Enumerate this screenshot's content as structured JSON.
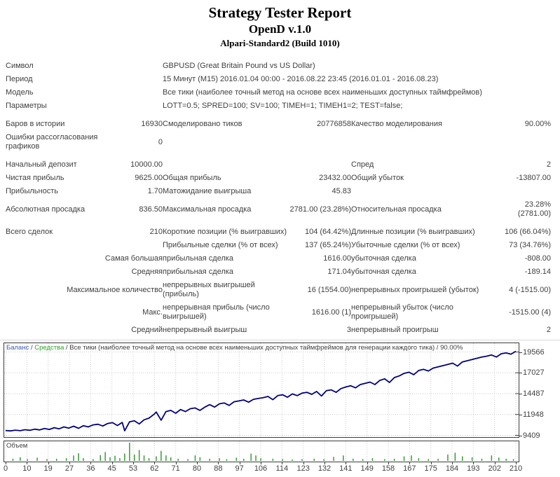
{
  "header": {
    "title": "Strategy Tester Report",
    "expert": "OpenD v.1.0",
    "server": "Alpari-Standard2 (Build 1010)"
  },
  "report": {
    "rows": [
      {
        "c": [
          {
            "t": "Символ",
            "k": "label"
          },
          {
            "t": "",
            "k": "value"
          },
          {
            "t": "GBPUSD (Great Britain Pound vs US Dollar)",
            "s": 4,
            "k": "sublabel"
          }
        ]
      },
      {
        "c": [
          {
            "t": "Период",
            "k": "label"
          },
          {
            "t": "",
            "k": "value"
          },
          {
            "t": "15 Минут (M15) 2016.01.04 00:00 - 2016.08.22 23:45 (2016.01.01 - 2016.08.23)",
            "s": 4,
            "k": "sublabel"
          }
        ]
      },
      {
        "c": [
          {
            "t": "Модель",
            "k": "label"
          },
          {
            "t": "",
            "k": "value"
          },
          {
            "t": "Все тики (наиболее точный метод на основе всех наименьших доступных таймфреймов)",
            "s": 4,
            "k": "sublabel"
          }
        ]
      },
      {
        "c": [
          {
            "t": "Параметры",
            "k": "label"
          },
          {
            "t": "",
            "k": "value"
          },
          {
            "t": "LOTT=0.5; SPRED=100; SV=100; TIMEH=1; TIMEH1=2; TEST=false;",
            "s": 4,
            "k": "sublabel"
          }
        ]
      },
      {
        "gap": true
      },
      {
        "c": [
          {
            "t": "Баров в истории",
            "k": "label"
          },
          {
            "t": "16930",
            "k": "value"
          },
          {
            "t": "Смоделировано тиков",
            "k": "sublabel"
          },
          {
            "t": "20776858",
            "k": "value"
          },
          {
            "t": "Качество моделирования",
            "k": "sublabel"
          },
          {
            "t": "90.00%",
            "k": "value"
          }
        ]
      },
      {
        "c": [
          {
            "t": "Ошибки рассогласования графиков",
            "k": "label"
          },
          {
            "t": "0",
            "k": "value"
          },
          {
            "t": "",
            "s": 4,
            "k": "sublabel"
          }
        ]
      },
      {
        "gap": true
      },
      {
        "c": [
          {
            "t": "Начальный депозит",
            "k": "label"
          },
          {
            "t": "10000.00",
            "k": "value"
          },
          {
            "t": "",
            "k": "sublabel"
          },
          {
            "t": "",
            "k": "value"
          },
          {
            "t": "Спред",
            "k": "sublabel"
          },
          {
            "t": "2",
            "k": "value"
          }
        ]
      },
      {
        "c": [
          {
            "t": "Чистая прибыль",
            "k": "label"
          },
          {
            "t": "9625.00",
            "k": "value"
          },
          {
            "t": "Общая прибыль",
            "k": "sublabel"
          },
          {
            "t": "23432.00",
            "k": "value"
          },
          {
            "t": "Общий убыток",
            "k": "sublabel"
          },
          {
            "t": "-13807.00",
            "k": "value"
          }
        ]
      },
      {
        "c": [
          {
            "t": "Прибыльность",
            "k": "label"
          },
          {
            "t": "1.70",
            "k": "value"
          },
          {
            "t": "Матожидание выигрыша",
            "k": "sublabel"
          },
          {
            "t": "45.83",
            "k": "value"
          },
          {
            "t": "",
            "k": "sublabel"
          },
          {
            "t": "",
            "k": "value"
          }
        ]
      },
      {
        "c": [
          {
            "t": "Абсолютная просадка",
            "k": "label"
          },
          {
            "t": "836.50",
            "k": "value"
          },
          {
            "t": "Максимальная просадка",
            "k": "sublabel"
          },
          {
            "t": "2781.00 (23.28%)",
            "k": "value"
          },
          {
            "t": "Относительная просадка",
            "k": "sublabel"
          },
          {
            "t": "23.28% (2781.00)",
            "k": "value"
          }
        ]
      },
      {
        "gap": true
      },
      {
        "c": [
          {
            "t": "Всего сделок",
            "k": "label"
          },
          {
            "t": "210",
            "k": "value"
          },
          {
            "t": "Короткие позиции (% выигравших)",
            "k": "sublabel"
          },
          {
            "t": "104 (64.42%)",
            "k": "value"
          },
          {
            "t": "Длинные позиции (% выигравших)",
            "k": "sublabel"
          },
          {
            "t": "106 (66.04%)",
            "k": "value"
          }
        ]
      },
      {
        "c": [
          {
            "t": "",
            "s": 2,
            "k": "prefix"
          },
          {
            "t": "Прибыльные сделки (% от всех)",
            "k": "sublabel"
          },
          {
            "t": "137 (65.24%)",
            "k": "value"
          },
          {
            "t": "Убыточные сделки (% от всех)",
            "k": "sublabel"
          },
          {
            "t": "73 (34.76%)",
            "k": "value"
          }
        ]
      },
      {
        "c": [
          {
            "t": "Самая большая",
            "s": 2,
            "k": "prefix"
          },
          {
            "t": "прибыльная сделка",
            "k": "sublabel"
          },
          {
            "t": "1616.00",
            "k": "value"
          },
          {
            "t": "убыточная сделка",
            "k": "sublabel"
          },
          {
            "t": "-808.00",
            "k": "value"
          }
        ]
      },
      {
        "c": [
          {
            "t": "Средняя",
            "s": 2,
            "k": "prefix"
          },
          {
            "t": "прибыльная сделка",
            "k": "sublabel"
          },
          {
            "t": "171.04",
            "k": "value"
          },
          {
            "t": "убыточная сделка",
            "k": "sublabel"
          },
          {
            "t": "-189.14",
            "k": "value"
          }
        ]
      },
      {
        "c": [
          {
            "t": "Максимальное количество",
            "s": 2,
            "k": "prefix"
          },
          {
            "t": "непрерывных выигрышей (прибыль)",
            "k": "sublabel"
          },
          {
            "t": "16 (1554.00)",
            "k": "value"
          },
          {
            "t": "непрерывных проигрышей (убыток)",
            "k": "sublabel"
          },
          {
            "t": "4 (-1515.00)",
            "k": "value"
          }
        ]
      },
      {
        "c": [
          {
            "t": "Макс.",
            "s": 2,
            "k": "prefix"
          },
          {
            "t": "непрерывная прибыль (число выигрышей)",
            "k": "sublabel"
          },
          {
            "t": "1616.00 (1)",
            "k": "value"
          },
          {
            "t": "непрерывный убыток (число проигрышей)",
            "k": "sublabel"
          },
          {
            "t": "-1515.00 (4)",
            "k": "value"
          }
        ]
      },
      {
        "c": [
          {
            "t": "Средний",
            "s": 2,
            "k": "prefix"
          },
          {
            "t": "непрерывный выигрыш",
            "k": "sublabel"
          },
          {
            "t": "3",
            "k": "value"
          },
          {
            "t": "непрерывный проигрыш",
            "k": "sublabel"
          },
          {
            "t": "2",
            "k": "value"
          }
        ]
      }
    ]
  },
  "chart": {
    "legend": {
      "balance": "Баланс",
      "equity": "Средства",
      "model": "Все тики (наиболее точный метод на основе всех наименьших доступных таймфреймов для генерации каждого тика)",
      "quality": "90.00%",
      "separator": " / "
    },
    "volume_label": "Объем",
    "colors": {
      "balance_line": "#000080",
      "balance_legend": "#3b5bb5",
      "equity_legend": "#2e9e2e",
      "volume_bar": "#3a9a3a",
      "grid": "#c9c9c9",
      "axis_text": "#3f3f3f",
      "border": "#3c3c3c"
    }
  },
  "chart_data": {
    "type": "line",
    "series": [
      {
        "name": "Баланс",
        "points": [
          [
            0,
            10000
          ],
          [
            2,
            9950
          ],
          [
            4,
            10040
          ],
          [
            6,
            9970
          ],
          [
            8,
            10090
          ],
          [
            10,
            10020
          ],
          [
            12,
            10160
          ],
          [
            14,
            10070
          ],
          [
            16,
            10240
          ],
          [
            18,
            10130
          ],
          [
            20,
            10340
          ],
          [
            22,
            10200
          ],
          [
            24,
            10430
          ],
          [
            26,
            10290
          ],
          [
            28,
            10520
          ],
          [
            30,
            10260
          ],
          [
            32,
            10580
          ],
          [
            34,
            10430
          ],
          [
            36,
            10680
          ],
          [
            38,
            10760
          ],
          [
            40,
            10540
          ],
          [
            42,
            10850
          ],
          [
            44,
            10950
          ],
          [
            46,
            10600
          ],
          [
            48,
            10980
          ],
          [
            49,
            9960
          ],
          [
            51,
            11050
          ],
          [
            53,
            11180
          ],
          [
            55,
            10800
          ],
          [
            57,
            11300
          ],
          [
            59,
            11500
          ],
          [
            61,
            11950
          ],
          [
            62,
            12250
          ],
          [
            64,
            11250
          ],
          [
            66,
            12300
          ],
          [
            68,
            12450
          ],
          [
            70,
            12100
          ],
          [
            72,
            12550
          ],
          [
            74,
            12300
          ],
          [
            76,
            12650
          ],
          [
            78,
            12750
          ],
          [
            80,
            12450
          ],
          [
            82,
            12850
          ],
          [
            84,
            13150
          ],
          [
            86,
            12850
          ],
          [
            88,
            13250
          ],
          [
            90,
            13350
          ],
          [
            92,
            13050
          ],
          [
            94,
            13500
          ],
          [
            96,
            13600
          ],
          [
            98,
            13720
          ],
          [
            100,
            13450
          ],
          [
            102,
            13800
          ],
          [
            104,
            13900
          ],
          [
            106,
            14000
          ],
          [
            108,
            14150
          ],
          [
            110,
            13750
          ],
          [
            112,
            14250
          ],
          [
            114,
            14350
          ],
          [
            116,
            14050
          ],
          [
            118,
            14450
          ],
          [
            120,
            14250
          ],
          [
            122,
            14550
          ],
          [
            124,
            14650
          ],
          [
            126,
            14400
          ],
          [
            128,
            14750
          ],
          [
            130,
            14200
          ],
          [
            132,
            14850
          ],
          [
            134,
            14950
          ],
          [
            136,
            14650
          ],
          [
            138,
            15100
          ],
          [
            140,
            15300
          ],
          [
            142,
            15450
          ],
          [
            144,
            15200
          ],
          [
            146,
            15600
          ],
          [
            148,
            15750
          ],
          [
            150,
            15900
          ],
          [
            152,
            15600
          ],
          [
            154,
            16100
          ],
          [
            156,
            16300
          ],
          [
            158,
            15850
          ],
          [
            160,
            16450
          ],
          [
            162,
            16650
          ],
          [
            164,
            16950
          ],
          [
            166,
            17100
          ],
          [
            168,
            16800
          ],
          [
            170,
            17300
          ],
          [
            172,
            17450
          ],
          [
            174,
            17250
          ],
          [
            176,
            17600
          ],
          [
            178,
            17750
          ],
          [
            180,
            17900
          ],
          [
            182,
            18050
          ],
          [
            184,
            18200
          ],
          [
            186,
            17850
          ],
          [
            188,
            18350
          ],
          [
            190,
            18500
          ],
          [
            192,
            18650
          ],
          [
            194,
            18800
          ],
          [
            196,
            18950
          ],
          [
            198,
            19050
          ],
          [
            200,
            19200
          ],
          [
            202,
            18950
          ],
          [
            204,
            19350
          ],
          [
            206,
            19450
          ],
          [
            208,
            19300
          ],
          [
            210,
            19650
          ]
        ]
      }
    ],
    "volume_bars": [
      [
        3,
        0.12
      ],
      [
        6,
        0.2
      ],
      [
        9,
        0.1
      ],
      [
        13,
        0.18
      ],
      [
        17,
        0.1
      ],
      [
        21,
        0.12
      ],
      [
        25,
        0.15
      ],
      [
        28,
        0.3
      ],
      [
        30,
        0.42
      ],
      [
        32,
        0.15
      ],
      [
        36,
        0.1
      ],
      [
        39,
        0.32
      ],
      [
        41,
        0.48
      ],
      [
        43,
        0.2
      ],
      [
        45,
        0.28
      ],
      [
        47,
        0.15
      ],
      [
        49,
        0.4
      ],
      [
        51,
        1.0
      ],
      [
        53,
        0.35
      ],
      [
        55,
        0.6
      ],
      [
        57,
        0.3
      ],
      [
        59,
        0.15
      ],
      [
        62,
        0.25
      ],
      [
        64,
        0.55
      ],
      [
        66,
        0.3
      ],
      [
        68,
        0.2
      ],
      [
        71,
        0.12
      ],
      [
        75,
        0.1
      ],
      [
        78,
        0.3
      ],
      [
        80,
        0.2
      ],
      [
        84,
        0.12
      ],
      [
        88,
        0.15
      ],
      [
        91,
        0.1
      ],
      [
        95,
        0.18
      ],
      [
        98,
        0.12
      ],
      [
        101,
        0.4
      ],
      [
        103,
        0.3
      ],
      [
        105,
        0.15
      ],
      [
        110,
        0.12
      ],
      [
        114,
        0.1
      ],
      [
        118,
        0.08
      ],
      [
        122,
        0.1
      ],
      [
        127,
        0.12
      ],
      [
        131,
        0.1
      ],
      [
        135,
        0.22
      ],
      [
        139,
        0.3
      ],
      [
        143,
        0.12
      ],
      [
        147,
        0.1
      ],
      [
        151,
        0.15
      ],
      [
        156,
        0.1
      ],
      [
        160,
        0.12
      ],
      [
        164,
        0.25
      ],
      [
        167,
        0.3
      ],
      [
        170,
        0.15
      ],
      [
        174,
        0.1
      ],
      [
        178,
        0.12
      ],
      [
        182,
        0.35
      ],
      [
        185,
        0.45
      ],
      [
        188,
        0.25
      ],
      [
        192,
        0.2
      ],
      [
        196,
        0.12
      ],
      [
        200,
        0.3
      ],
      [
        203,
        0.18
      ],
      [
        206,
        0.12
      ],
      [
        209,
        0.1
      ]
    ],
    "xlim": [
      0,
      210
    ],
    "ylim": [
      9409,
      19566
    ],
    "y_ticks": [
      19566,
      17027,
      14487,
      11948,
      9409
    ],
    "x_ticks": [
      0,
      10,
      19,
      27,
      36,
      45,
      53,
      62,
      71,
      80,
      88,
      97,
      106,
      114,
      123,
      132,
      141,
      149,
      158,
      167,
      175,
      184,
      193,
      202,
      210
    ],
    "grid": "dotted"
  }
}
